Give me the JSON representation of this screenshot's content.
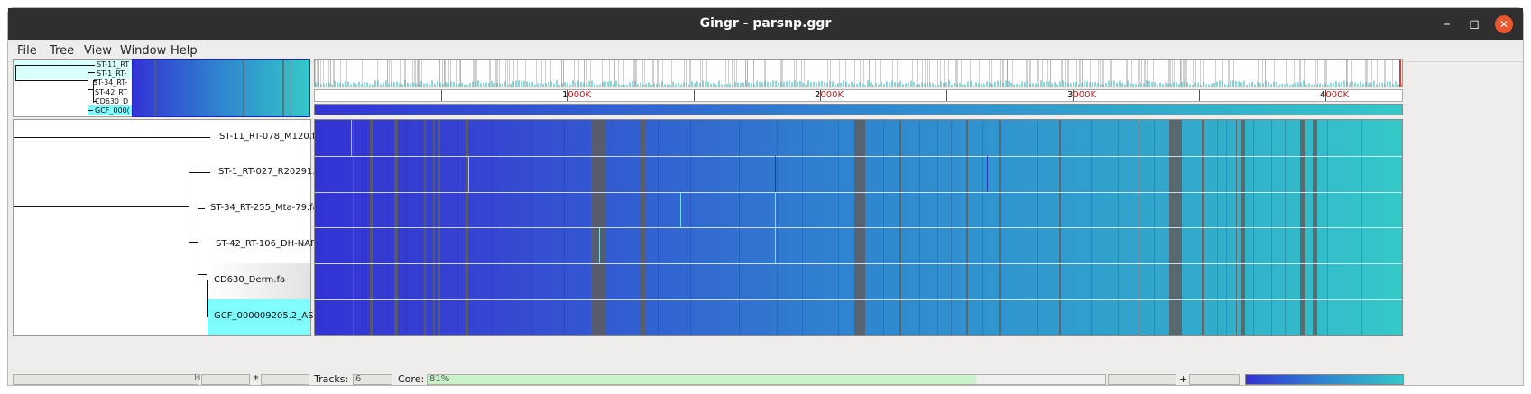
{
  "window": {
    "title": "Gingr - parsnp.ggr"
  },
  "menu": [
    "File",
    "Tree",
    "View",
    "Window",
    "Help"
  ],
  "minitree": {
    "labels": [
      "ST-11_RT",
      "ST-1_RT-",
      "ST-34_RT-",
      "ST-42_RT",
      "CD630_D",
      "GCF_000("
    ]
  },
  "tree": {
    "labels": [
      "ST-11_RT-078_M120.f",
      "ST-1_RT-027_R20291.",
      "ST-34_RT-255_Mta-79.fa",
      "ST-42_RT-106_DH-NAP",
      "CD630_Derm.fa",
      "GCF_000009205.2_ASM"
    ]
  },
  "ruler": {
    "labels": [
      {
        "num": "1",
        "unit": "000K"
      },
      {
        "num": "2",
        "unit": "000K"
      },
      {
        "num": "3",
        "unit": "000K"
      },
      {
        "num": "4",
        "unit": "000K"
      }
    ]
  },
  "status": {
    "tracks_label": "Tracks:",
    "tracks_value": "6",
    "core_label": "Core:",
    "core_value": "81%",
    "core_fraction": 0.81,
    "plus": "+",
    "asterisk": "*",
    "left_symbol": "H"
  },
  "colors": {
    "gradient_start": "#3333d4",
    "gradient_mid": "#2f8ad0",
    "gradient_end": "#34c8c8",
    "highlight": "#7ffcff",
    "gap": "#5e5e5e",
    "core_bar": "#c8f2c8"
  }
}
